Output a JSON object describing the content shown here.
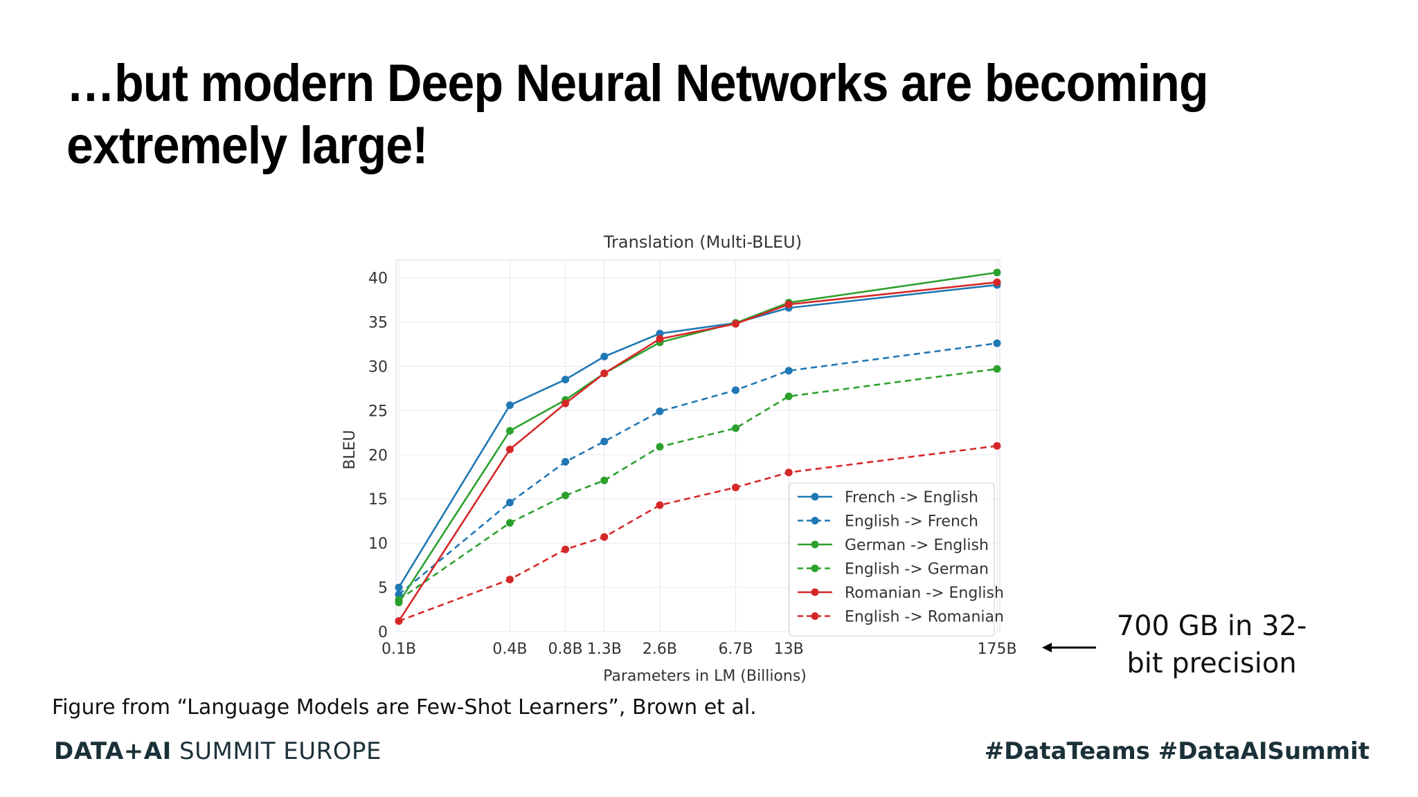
{
  "slide": {
    "title": "…but modern Deep Neural Networks are becoming extremely large!",
    "annotation": "700 GB in 32-bit precision",
    "caption": "Figure from “Language Models are Few-Shot Learners”, Brown et al.",
    "footer_brand_bold": "DATA+AI",
    "footer_brand_rest": " SUMMIT EUROPE",
    "footer_tags": "#DataTeams #DataAISummit"
  },
  "chart_data": {
    "type": "line",
    "title": "Translation (Multi-BLEU)",
    "xlabel": "Parameters in LM (Billions)",
    "ylabel": "BLEU",
    "x_scale": "log",
    "x": [
      0.1,
      0.4,
      0.8,
      1.3,
      2.6,
      6.7,
      13,
      175
    ],
    "x_tick_labels": [
      "0.1B",
      "0.4B",
      "0.8B",
      "1.3B",
      "2.6B",
      "6.7B",
      "13B",
      "175B"
    ],
    "ylim": [
      0,
      42
    ],
    "y_ticks": [
      0,
      5,
      10,
      15,
      20,
      25,
      30,
      35,
      40
    ],
    "grid": true,
    "legend_position": "lower-right",
    "series": [
      {
        "name": "French -> English",
        "color": "#1f77b4",
        "style": "solid",
        "values": [
          5.0,
          25.6,
          28.5,
          31.1,
          33.7,
          34.9,
          36.6,
          39.2
        ]
      },
      {
        "name": "English -> French",
        "color": "#1f77b4",
        "style": "dashed",
        "values": [
          4.2,
          14.6,
          19.2,
          21.5,
          24.9,
          27.3,
          29.5,
          32.6
        ]
      },
      {
        "name": "German -> English",
        "color": "#2ca02c",
        "style": "solid",
        "values": [
          3.3,
          22.7,
          26.2,
          29.2,
          32.7,
          34.9,
          37.2,
          40.6
        ]
      },
      {
        "name": "English -> German",
        "color": "#2ca02c",
        "style": "dashed",
        "values": [
          3.6,
          12.3,
          15.4,
          17.1,
          20.9,
          23.0,
          26.6,
          29.7
        ]
      },
      {
        "name": "Romanian -> English",
        "color": "#d62728",
        "style": "solid",
        "values": [
          1.2,
          20.6,
          25.8,
          29.2,
          33.1,
          34.8,
          37.0,
          39.5
        ]
      },
      {
        "name": "English -> Romanian",
        "color": "#d62728",
        "style": "dashed",
        "values": [
          1.2,
          5.9,
          9.3,
          10.7,
          14.3,
          16.3,
          18.0,
          21.0
        ]
      }
    ]
  }
}
